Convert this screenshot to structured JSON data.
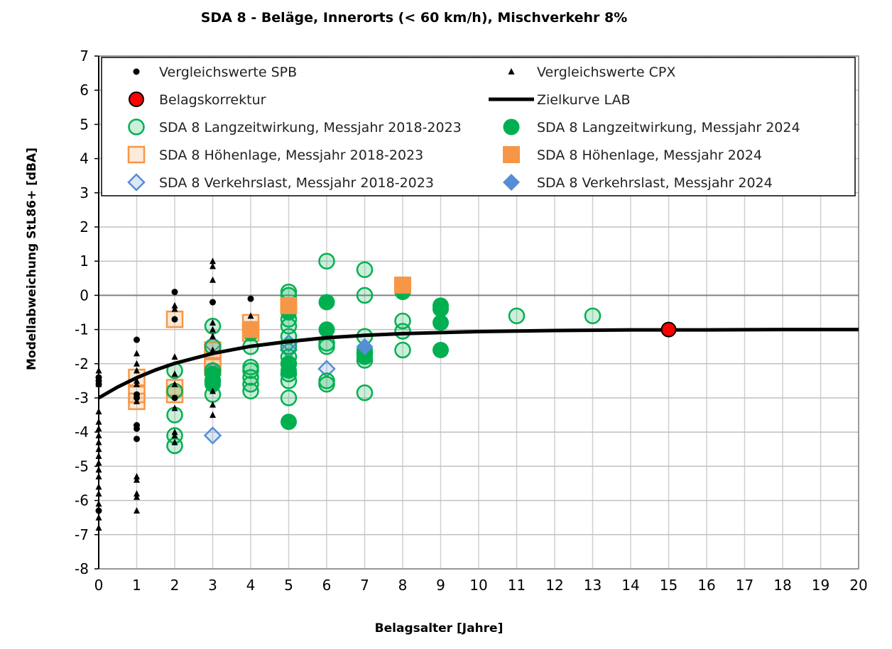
{
  "chart_data": {
    "type": "scatter",
    "title": "SDA 8 - Beläge, Innerorts (< 60 km/h), Mischverkehr 8%",
    "xlabel": "Belagsalter [Jahre]",
    "ylabel": "Modellabweichung StL86+ [dBA]",
    "xlim": [
      0,
      20
    ],
    "ylim": [
      -8,
      7
    ],
    "xticks": [
      0,
      1,
      2,
      3,
      4,
      5,
      6,
      7,
      8,
      9,
      10,
      11,
      12,
      13,
      14,
      15,
      16,
      17,
      18,
      19,
      20
    ],
    "yticks": [
      7,
      6,
      5,
      4,
      3,
      2,
      1,
      0,
      -1,
      -2,
      -3,
      -4,
      -5,
      -6,
      -7,
      -8
    ],
    "grid": true,
    "legend_position": "top (inside plot)",
    "series": [
      {
        "name": "Vergleichswerte SPB",
        "marker": "dot",
        "color": "#000000",
        "points": [
          [
            0,
            -2.4
          ],
          [
            0,
            -2.5
          ],
          [
            0,
            -2.6
          ],
          [
            0,
            -6.3
          ],
          [
            1,
            -1.3
          ],
          [
            1,
            -2.9
          ],
          [
            1,
            -3.0
          ],
          [
            1,
            -3.8
          ],
          [
            1,
            -3.9
          ],
          [
            1,
            -4.2
          ],
          [
            2,
            0.1
          ],
          [
            2,
            -0.7
          ],
          [
            2,
            -3.0
          ],
          [
            3,
            -0.2
          ],
          [
            4,
            -0.1
          ]
        ]
      },
      {
        "name": "Vergleichswerte CPX",
        "marker": "triangle",
        "color": "#000000",
        "points": [
          [
            0,
            -2.2
          ],
          [
            0,
            -2.6
          ],
          [
            0,
            -3.4
          ],
          [
            0,
            -3.7
          ],
          [
            0,
            -3.9
          ],
          [
            0,
            -4.1
          ],
          [
            0,
            -4.3
          ],
          [
            0,
            -4.5
          ],
          [
            0,
            -4.7
          ],
          [
            0,
            -4.9
          ],
          [
            0,
            -5.1
          ],
          [
            0,
            -5.3
          ],
          [
            0,
            -5.6
          ],
          [
            0,
            -5.8
          ],
          [
            0,
            -6.1
          ],
          [
            0,
            -6.5
          ],
          [
            0,
            -6.8
          ],
          [
            1,
            -1.7
          ],
          [
            1,
            -2.0
          ],
          [
            1,
            -2.2
          ],
          [
            1,
            -2.5
          ],
          [
            1,
            -2.6
          ],
          [
            1,
            -3.1
          ],
          [
            1,
            -5.3
          ],
          [
            1,
            -5.4
          ],
          [
            1,
            -5.8
          ],
          [
            1,
            -5.9
          ],
          [
            1,
            -6.3
          ],
          [
            2,
            -0.3
          ],
          [
            2,
            -0.4
          ],
          [
            2,
            -1.8
          ],
          [
            2,
            -2.3
          ],
          [
            2,
            -2.6
          ],
          [
            2,
            -3.3
          ],
          [
            2,
            -4.0
          ],
          [
            2,
            -4.1
          ],
          [
            2,
            -4.3
          ],
          [
            3,
            1.0
          ],
          [
            3,
            0.85
          ],
          [
            3,
            0.45
          ],
          [
            3,
            -0.8
          ],
          [
            3,
            -1.0
          ],
          [
            3,
            -1.2
          ],
          [
            3,
            -1.6
          ],
          [
            3,
            -2.8
          ],
          [
            3,
            -3.2
          ],
          [
            3,
            -3.5
          ],
          [
            4,
            -0.6
          ]
        ]
      },
      {
        "name": "Belagskorrektur",
        "marker": "circle-red",
        "color": "#ff0000",
        "points": [
          [
            15,
            -1.0
          ]
        ]
      },
      {
        "name": "Zielkurve LAB",
        "marker": "line",
        "color": "#000000",
        "points": [
          [
            0,
            -3.0
          ],
          [
            0.5,
            -2.68
          ],
          [
            1,
            -2.41
          ],
          [
            1.5,
            -2.18
          ],
          [
            2,
            -1.99
          ],
          [
            3,
            -1.7
          ],
          [
            4,
            -1.49
          ],
          [
            5,
            -1.35
          ],
          [
            6,
            -1.24
          ],
          [
            7,
            -1.17
          ],
          [
            8,
            -1.12
          ],
          [
            9,
            -1.09
          ],
          [
            10,
            -1.06
          ],
          [
            12,
            -1.03
          ],
          [
            14,
            -1.01
          ],
          [
            16,
            -1.01
          ],
          [
            18,
            -1.0
          ],
          [
            20,
            -1.0
          ]
        ]
      },
      {
        "name": "SDA 8 Langzeitwirkung, Messjahr 2018-2023",
        "marker": "circle-open",
        "color": "#00b050",
        "points": [
          [
            2,
            -2.2
          ],
          [
            2,
            -2.8
          ],
          [
            2,
            -3.5
          ],
          [
            2,
            -4.1
          ],
          [
            2,
            -4.4
          ],
          [
            3,
            -0.9
          ],
          [
            3,
            -1.5
          ],
          [
            3,
            -2.2
          ],
          [
            3,
            -2.5
          ],
          [
            3,
            -2.9
          ],
          [
            4,
            -1.1
          ],
          [
            4,
            -1.5
          ],
          [
            4,
            -2.1
          ],
          [
            4,
            -2.2
          ],
          [
            4,
            -2.4
          ],
          [
            4,
            -2.6
          ],
          [
            4,
            -2.8
          ],
          [
            5,
            0.1
          ],
          [
            5,
            0.0
          ],
          [
            5,
            -0.7
          ],
          [
            5,
            -0.9
          ],
          [
            5,
            -1.2
          ],
          [
            5,
            -1.5
          ],
          [
            5,
            -1.8
          ],
          [
            5,
            -2.0
          ],
          [
            5,
            -2.3
          ],
          [
            5,
            -2.5
          ],
          [
            5,
            -3.0
          ],
          [
            6,
            1.0
          ],
          [
            6,
            -1.4
          ],
          [
            6,
            -1.5
          ],
          [
            6,
            -2.5
          ],
          [
            6,
            -2.6
          ],
          [
            7,
            0.75
          ],
          [
            7,
            0.0
          ],
          [
            7,
            -1.2
          ],
          [
            7,
            -1.7
          ],
          [
            7,
            -1.9
          ],
          [
            7,
            -2.85
          ],
          [
            8,
            -0.75
          ],
          [
            8,
            -1.05
          ],
          [
            8,
            -1.6
          ],
          [
            11,
            -0.6
          ],
          [
            13,
            -0.6
          ]
        ]
      },
      {
        "name": "SDA 8 Langzeitwirkung, Messjahr 2024",
        "marker": "circle-filled",
        "color": "#00b050",
        "points": [
          [
            3,
            -2.3
          ],
          [
            3,
            -2.5
          ],
          [
            3,
            -2.6
          ],
          [
            4,
            -1.1
          ],
          [
            5,
            -0.5
          ],
          [
            5,
            -2.0
          ],
          [
            5,
            -2.2
          ],
          [
            5,
            -3.7
          ],
          [
            6,
            -0.2
          ],
          [
            6,
            -1.0
          ],
          [
            7,
            -1.6
          ],
          [
            7,
            -1.8
          ],
          [
            8,
            0.1
          ],
          [
            9,
            -0.3
          ],
          [
            9,
            -0.4
          ],
          [
            9,
            -0.8
          ],
          [
            9,
            -1.6
          ]
        ]
      },
      {
        "name": "SDA 8 Höhenlage, Messjahr 2018-2023",
        "marker": "square-open",
        "color": "#f79646",
        "points": [
          [
            1,
            -2.4
          ],
          [
            1,
            -2.9
          ],
          [
            1,
            -3.1
          ],
          [
            2,
            -0.7
          ],
          [
            2,
            -2.7
          ],
          [
            2,
            -2.9
          ],
          [
            3,
            -1.6
          ],
          [
            3,
            -1.9
          ],
          [
            3,
            -2.1
          ],
          [
            4,
            -0.8
          ],
          [
            4,
            -1.1
          ]
        ]
      },
      {
        "name": "SDA 8 Höhenlage, Messjahr 2024",
        "marker": "square-filled",
        "color": "#f79646",
        "points": [
          [
            4,
            -1.0
          ],
          [
            5,
            -0.3
          ],
          [
            8,
            0.3
          ]
        ]
      },
      {
        "name": "SDA 8 Verkehrslast, Messjahr 2018-2023",
        "marker": "diamond-open",
        "color": "#558ed5",
        "points": [
          [
            3,
            -1.45
          ],
          [
            3,
            -2.2
          ],
          [
            3,
            -4.1
          ],
          [
            5,
            -1.4
          ],
          [
            5,
            -1.6
          ],
          [
            6,
            -2.15
          ]
        ]
      },
      {
        "name": "SDA 8 Verkehrslast, Messjahr 2024",
        "marker": "diamond-filled",
        "color": "#558ed5",
        "points": [
          [
            7,
            -1.5
          ]
        ]
      }
    ]
  }
}
